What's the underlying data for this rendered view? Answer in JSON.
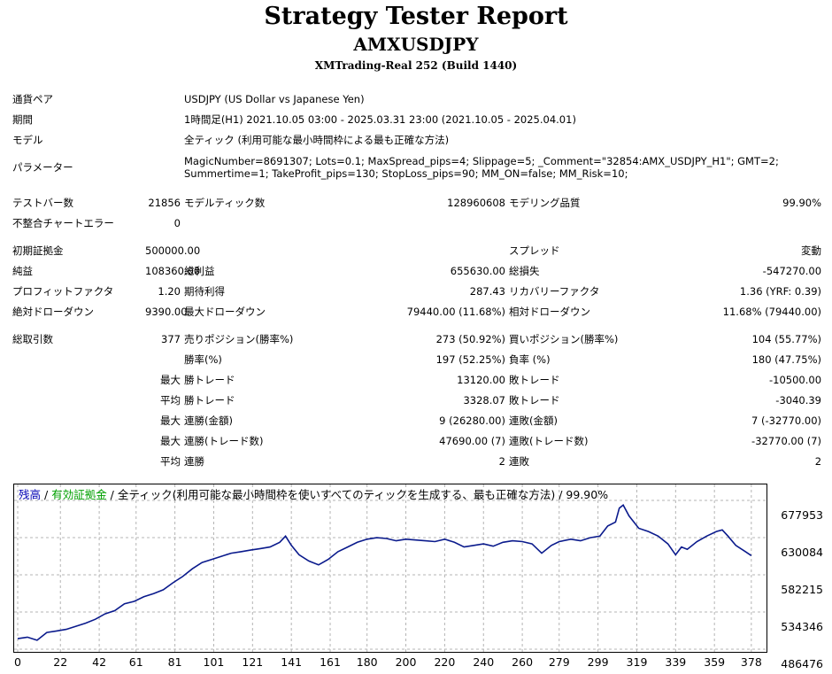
{
  "header": {
    "title": "Strategy Tester Report",
    "symbol": "AMXUSDJPY",
    "server": "XMTrading-Real 252 (Build 1440)"
  },
  "settings": {
    "pair": {
      "label": "通貨ペア",
      "value": "USDJPY (US Dollar vs Japanese Yen)"
    },
    "period": {
      "label": "期間",
      "value": "1時間足(H1) 2021.10.05 03:00 - 2025.03.31 23:00 (2021.10.05 - 2025.04.01)"
    },
    "model": {
      "label": "モデル",
      "value": "全ティック (利用可能な最小時間枠による最も正確な方法)"
    },
    "parameters": {
      "label": "パラメーター",
      "value": "MagicNumber=8691307; Lots=0.1; MaxSpread_pips=4; Slippage=5; _Comment=\"32854:AMX_USDJPY_H1\"; GMT=2; Summertime=1; TakeProfit_pips=130; StopLoss_pips=90; MM_ON=false; MM_Risk=10;"
    }
  },
  "stats": {
    "bars_label": "テストバー数",
    "bars": "21856",
    "ticks_label": "モデルティック数",
    "ticks": "128960608",
    "quality_label": "モデリング品質",
    "quality": "99.90%",
    "mismatch_label": "不整合チャートエラー",
    "mismatch": "0",
    "deposit_label": "初期証拠金",
    "deposit": "500000.00",
    "spread_label": "スプレッド",
    "spread": "変動",
    "net_label": "純益",
    "net": "108360.00",
    "gross_profit_label": "総利益",
    "gross_profit": "655630.00",
    "gross_loss_label": "総損失",
    "gross_loss": "-547270.00",
    "pf_label": "プロフィットファクタ",
    "pf": "1.20",
    "payoff_label": "期待利得",
    "payoff": "287.43",
    "recovery_label": "リカバリーファクタ",
    "recovery": "1.36 (YRF: 0.39)",
    "abs_dd_label": "絶対ドローダウン",
    "abs_dd": "9390.00",
    "max_dd_label": "最大ドローダウン",
    "max_dd": "79440.00 (11.68%)",
    "rel_dd_label": "相対ドローダウン",
    "rel_dd": "11.68% (79440.00)",
    "trades_label": "総取引数",
    "trades": "377",
    "short_label": "売りポジション(勝率%)",
    "short": "273 (50.92%)",
    "long_label": "買いポジション(勝率%)",
    "long": "104 (55.77%)",
    "winrate_label": "勝率(%)",
    "winrate": "197 (52.25%)",
    "lossrate_label": "負率 (%)",
    "lossrate": "180 (47.75%)",
    "max_label": "最大",
    "avg_label": "平均",
    "win_trade_label": "勝トレード",
    "max_win": "13120.00",
    "loss_trade_label": "敗トレード",
    "max_loss": "-10500.00",
    "avg_win": "3328.07",
    "avg_loss": "-3040.39",
    "cons_wins_amt_label": "連勝(金額)",
    "cons_wins_amt": "9 (26280.00)",
    "cons_losses_amt_label": "連敗(金額)",
    "cons_losses_amt": "7 (-32770.00)",
    "cons_profit_label": "連勝(トレード数)",
    "cons_profit": "47690.00 (7)",
    "cons_loss_label": "連敗(トレード数)",
    "cons_loss": "-32770.00 (7)",
    "avg_cons_wins_label": "連勝",
    "avg_cons_wins": "2",
    "avg_cons_losses_label": "連敗",
    "avg_cons_losses": "2"
  },
  "chart_legend": {
    "balance": "残高",
    "sep1": " / ",
    "equity": "有効証拠金",
    "sep2": " / ",
    "rest": "全ティック(利用可能な最小時間枠を使いすべてのティックを生成する、最も正確な方法) / 99.90%"
  },
  "chart_data": {
    "type": "line",
    "y_ticks": [
      "677953",
      "630084",
      "582215",
      "534346",
      "486476"
    ],
    "x_ticks": [
      "0",
      "22",
      "42",
      "61",
      "81",
      "101",
      "121",
      "141",
      "161",
      "180",
      "200",
      "220",
      "240",
      "260",
      "279",
      "299",
      "319",
      "339",
      "359",
      "378"
    ],
    "ylim": [
      486476,
      677953
    ],
    "xlim": [
      0,
      384
    ],
    "grid": true,
    "colors": {
      "balance": "#0a1a8c",
      "grid": "#b4b4b4"
    },
    "series": [
      {
        "name": "残高",
        "x": [
          0,
          5,
          10,
          15,
          20,
          25,
          30,
          35,
          40,
          45,
          50,
          55,
          60,
          65,
          70,
          75,
          80,
          85,
          90,
          95,
          100,
          105,
          110,
          115,
          120,
          125,
          130,
          135,
          138,
          141,
          145,
          150,
          155,
          160,
          165,
          170,
          175,
          180,
          185,
          190,
          195,
          200,
          205,
          210,
          215,
          220,
          225,
          230,
          235,
          240,
          245,
          250,
          255,
          260,
          265,
          270,
          275,
          279,
          285,
          290,
          295,
          300,
          304,
          308,
          310,
          312,
          315,
          320,
          325,
          330,
          335,
          339,
          342,
          345,
          350,
          355,
          360,
          363,
          366,
          370,
          375,
          378
        ],
        "y": [
          500000,
          502000,
          498000,
          508000,
          510000,
          512000,
          516000,
          520000,
          525000,
          532000,
          536000,
          545000,
          548000,
          554000,
          558000,
          563000,
          572000,
          580000,
          590000,
          598000,
          602000,
          606000,
          610000,
          612000,
          614000,
          616000,
          618000,
          624000,
          632000,
          620000,
          608000,
          600000,
          595000,
          602000,
          612000,
          618000,
          624000,
          628000,
          630000,
          629000,
          626000,
          628000,
          627000,
          626000,
          625000,
          628000,
          624000,
          618000,
          620000,
          622000,
          619000,
          624000,
          626000,
          625000,
          622000,
          610000,
          620000,
          625000,
          628000,
          626000,
          630000,
          632000,
          645000,
          650000,
          668000,
          672000,
          658000,
          642000,
          638000,
          632000,
          622000,
          608000,
          618000,
          615000,
          625000,
          632000,
          638000,
          640000,
          632000,
          620000,
          612000,
          607000
        ]
      }
    ]
  }
}
